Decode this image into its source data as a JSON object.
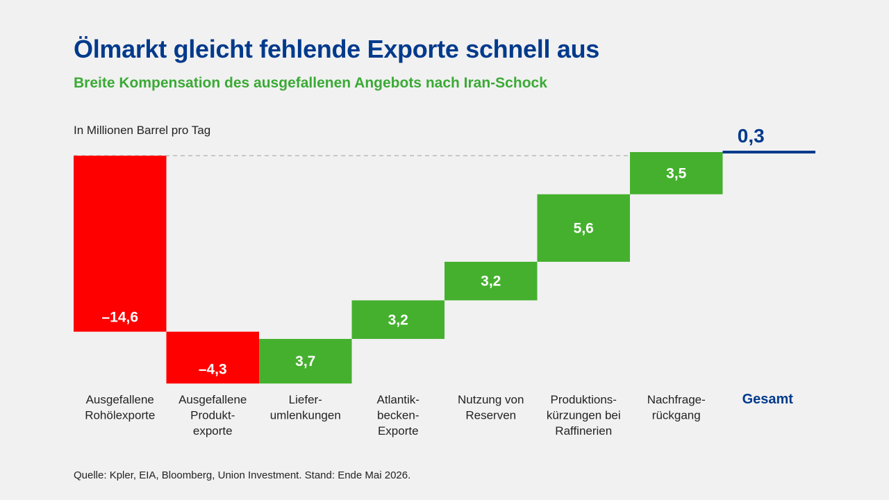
{
  "header": {
    "title": "Ölmarkt gleicht fehlende Exporte schnell aus",
    "subtitle": "Breite Kompensation des ausgefallenen Angebots nach Iran-Schock"
  },
  "unit_label": "In Millionen Barrel pro Tag",
  "source": "Quelle: Kpler, EIA, Bloomberg, Union Investment. Stand: Ende Mai 2026.",
  "colors": {
    "negative": "#ff0000",
    "positive": "#45b02e",
    "total": "#003a8c",
    "baseline": "#bbbbbb"
  },
  "chart_data": {
    "type": "bar",
    "subtype": "waterfall",
    "categories": [
      [
        "Ausgefallene",
        "Rohölexporte"
      ],
      [
        "Ausgefallene",
        "Produkt-",
        "exporte"
      ],
      [
        "Liefer-",
        "umlenkungen"
      ],
      [
        "Atlantik-",
        "becken-",
        "Exporte"
      ],
      [
        "Nutzung von",
        "Reserven"
      ],
      [
        "Produktions-",
        "kürzungen bei",
        "Raffinerien"
      ],
      [
        "Nachfrage-",
        "rückgang"
      ],
      [
        "Gesamt"
      ]
    ],
    "values": [
      -14.6,
      -4.3,
      3.7,
      3.2,
      3.2,
      5.6,
      3.5,
      0.3
    ],
    "value_labels": [
      "–14,6",
      "–4,3",
      "3,7",
      "3,2",
      "3,2",
      "5,6",
      "3,5",
      "0,3"
    ],
    "total_index": 7,
    "ylim": [
      -19.0,
      0.3
    ],
    "baseline": 0,
    "baseline_style": "dashed",
    "grid": false,
    "legend": "none"
  }
}
